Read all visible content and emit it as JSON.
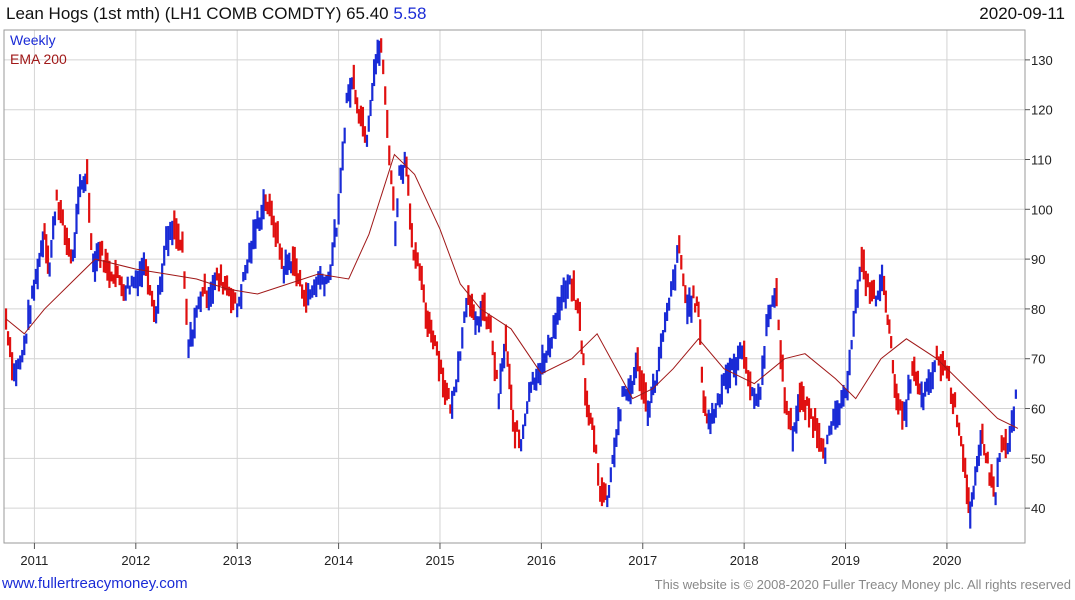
{
  "header": {
    "title": "Lean Hogs (1st mth)  (LH1 COMB COMDTY) 65.40",
    "change": "5.58",
    "date": "2020-09-11"
  },
  "footer": {
    "site_link": "www.fullertreacymoney.com",
    "copyright": "This website is © 2008-2020 Fuller Treacy Money plc. All rights reserved"
  },
  "chart_data": {
    "type": "line",
    "legend": [
      {
        "label": "Weekly",
        "color": "#1a2bd6"
      },
      {
        "label": "EMA 200",
        "color": "#a01818"
      }
    ],
    "colors": {
      "up": "#1a2bd6",
      "down": "#e01010",
      "ema": "#a01818",
      "grid": "#d4d4d4"
    },
    "ylim": [
      33,
      136
    ],
    "y_ticks": [
      40,
      50,
      60,
      70,
      80,
      90,
      100,
      110,
      120,
      130
    ],
    "xlim": [
      2010.7,
      2020.77
    ],
    "x_ticks": [
      {
        "value": 2011,
        "label": "2011"
      },
      {
        "value": 2012,
        "label": "2012"
      },
      {
        "value": 2013,
        "label": "2013"
      },
      {
        "value": 2014,
        "label": "2014"
      },
      {
        "value": 2015,
        "label": "2015"
      },
      {
        "value": 2016,
        "label": "2016"
      },
      {
        "value": 2017,
        "label": "2017"
      },
      {
        "value": 2018,
        "label": "2018"
      },
      {
        "value": 2019,
        "label": "2019"
      },
      {
        "value": 2020,
        "label": "2020"
      }
    ],
    "series": [
      {
        "name": "Weekly",
        "x": [
          2010.72,
          2010.8,
          2010.88,
          2010.96,
          2011.05,
          2011.1,
          2011.15,
          2011.22,
          2011.3,
          2011.38,
          2011.45,
          2011.52,
          2011.58,
          2011.65,
          2011.72,
          2011.8,
          2011.9,
          2012.0,
          2012.1,
          2012.2,
          2012.3,
          2012.38,
          2012.46,
          2012.52,
          2012.6,
          2012.66,
          2012.72,
          2012.8,
          2012.9,
          2013.0,
          2013.1,
          2013.2,
          2013.28,
          2013.38,
          2013.46,
          2013.55,
          2013.62,
          2013.7,
          2013.8,
          2013.9,
          2014.0,
          2014.08,
          2014.15,
          2014.2,
          2014.28,
          2014.35,
          2014.42,
          2014.5,
          2014.56,
          2014.6,
          2014.67,
          2014.74,
          2014.8,
          2014.86,
          2014.95,
          2015.05,
          2015.12,
          2015.2,
          2015.28,
          2015.35,
          2015.42,
          2015.5,
          2015.58,
          2015.65,
          2015.72,
          2015.8,
          2015.88,
          2015.95,
          2016.05,
          2016.12,
          2016.2,
          2016.3,
          2016.38,
          2016.45,
          2016.52,
          2016.58,
          2016.65,
          2016.72,
          2016.8,
          2016.88,
          2016.95,
          2017.05,
          2017.12,
          2017.2,
          2017.28,
          2017.36,
          2017.44,
          2017.5,
          2017.55,
          2017.6,
          2017.65,
          2017.72,
          2017.8,
          2017.9,
          2018.0,
          2018.08,
          2018.16,
          2018.24,
          2018.32,
          2018.4,
          2018.48,
          2018.55,
          2018.62,
          2018.7,
          2018.8,
          2018.9,
          2019.0,
          2019.08,
          2019.16,
          2019.22,
          2019.3,
          2019.38,
          2019.45,
          2019.52,
          2019.58,
          2019.66,
          2019.75,
          2019.82,
          2019.9,
          2020.0,
          2020.06,
          2020.12,
          2020.18,
          2020.23,
          2020.28,
          2020.35,
          2020.42,
          2020.48,
          2020.54,
          2020.6,
          2020.66,
          2020.7
        ],
        "y": [
          78,
          67,
          70,
          80,
          90,
          96,
          88,
          103,
          95,
          90,
          104,
          107,
          89,
          92,
          88,
          87,
          84,
          86,
          89,
          79,
          93,
          96,
          92,
          72,
          79,
          84,
          83,
          86,
          85,
          80,
          89,
          97,
          102,
          96,
          88,
          90,
          85,
          82,
          86,
          86,
          99,
          122,
          126,
          120,
          115,
          128,
          133,
          112,
          96,
          107,
          110,
          90,
          88,
          79,
          74,
          64,
          60,
          72,
          84,
          76,
          80,
          76,
          62,
          74,
          57,
          53,
          64,
          67,
          70,
          76,
          82,
          85,
          78,
          60,
          55,
          44,
          42,
          52,
          62,
          64,
          69,
          60,
          65,
          74,
          83,
          92,
          80,
          82,
          80,
          62,
          57,
          60,
          66,
          68,
          72,
          62,
          63,
          80,
          82,
          62,
          55,
          62,
          60,
          57,
          52,
          58,
          62,
          78,
          89,
          85,
          82,
          86,
          72,
          60,
          58,
          68,
          62,
          64,
          70,
          68,
          62,
          57,
          48,
          38,
          45,
          55,
          47,
          43,
          53,
          52,
          58,
          66
        ],
        "style": "bars"
      },
      {
        "name": "EMA 200",
        "x": [
          2010.72,
          2010.9,
          2011.1,
          2011.4,
          2011.6,
          2012.0,
          2012.3,
          2012.6,
          2012.9,
          2013.2,
          2013.5,
          2013.8,
          2014.1,
          2014.3,
          2014.55,
          2014.75,
          2015.0,
          2015.2,
          2015.4,
          2015.7,
          2016.0,
          2016.3,
          2016.55,
          2016.9,
          2017.1,
          2017.3,
          2017.55,
          2017.8,
          2018.1,
          2018.4,
          2018.6,
          2018.9,
          2019.1,
          2019.35,
          2019.6,
          2019.9,
          2020.2,
          2020.5,
          2020.7
        ],
        "y": [
          78,
          75,
          80,
          86,
          90,
          88,
          87,
          86,
          84,
          83,
          85,
          87,
          86,
          95,
          111,
          107,
          96,
          85,
          80,
          76,
          67,
          70,
          75,
          62,
          64,
          68,
          74,
          68,
          65,
          70,
          71,
          66,
          62,
          70,
          74,
          70,
          64,
          58,
          56
        ],
        "style": "line"
      }
    ]
  }
}
